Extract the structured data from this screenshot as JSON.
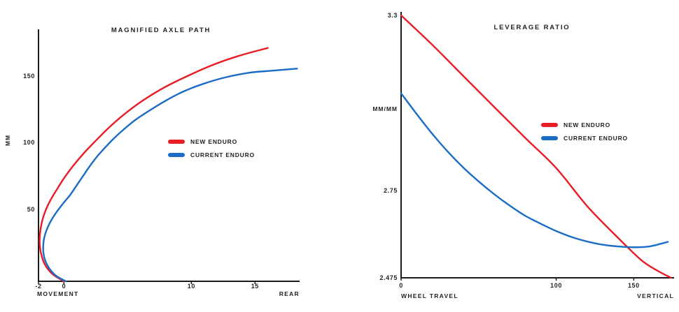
{
  "page": {
    "background": "#ffffff"
  },
  "colors": {
    "red": "#e81c24",
    "blue": "#1b6cc6",
    "text": "#231f20",
    "axis": "#1a1a1a"
  },
  "chart_data": [
    {
      "type": "line",
      "title": "MAGNIFIED AXLE PATH",
      "ylabel": "MM",
      "xlabel_left": "MOVEMENT",
      "xlabel_right": "REAR",
      "xlim": [
        -2,
        18.5
      ],
      "ylim": [
        -4,
        185
      ],
      "grid": false,
      "legend_position": "center",
      "x_ticks": [
        {
          "value": -2,
          "label": "-2"
        },
        {
          "value": 0,
          "label": "0"
        },
        {
          "value": 10,
          "label": "10"
        },
        {
          "value": 15,
          "label": "15"
        }
      ],
      "y_ticks": [
        {
          "value": 50,
          "label": "50"
        },
        {
          "value": 100,
          "label": "100"
        },
        {
          "value": 150,
          "label": "150"
        }
      ],
      "legend": [
        {
          "label": "NEW ENDURO",
          "color": "#e81c24"
        },
        {
          "label": "CURRENT ENDURO",
          "color": "#1b6cc6"
        }
      ],
      "series": [
        {
          "name": "NEW ENDURO",
          "color": "#e81c24",
          "points": [
            [
              0,
              -4
            ],
            [
              -0.85,
              1
            ],
            [
              -1.4,
              7
            ],
            [
              -1.72,
              14
            ],
            [
              -1.9,
              23
            ],
            [
              -1.88,
              32
            ],
            [
              -1.72,
              41
            ],
            [
              -1.45,
              49
            ],
            [
              -1.05,
              57
            ],
            [
              -0.55,
              65
            ],
            [
              0.05,
              74
            ],
            [
              0.75,
              83
            ],
            [
              1.55,
              92
            ],
            [
              2.45,
              101
            ],
            [
              3.5,
              111
            ],
            [
              4.7,
              121
            ],
            [
              6.1,
              131
            ],
            [
              7.8,
              141
            ],
            [
              9.7,
              150
            ],
            [
              11.6,
              158
            ],
            [
              13.7,
              165
            ],
            [
              16.0,
              171
            ]
          ]
        },
        {
          "name": "CURRENT ENDURO",
          "color": "#1b6cc6",
          "points": [
            [
              0.15,
              -4
            ],
            [
              -0.6,
              0
            ],
            [
              -1.1,
              5
            ],
            [
              -1.45,
              11
            ],
            [
              -1.62,
              18
            ],
            [
              -1.6,
              26
            ],
            [
              -1.42,
              33
            ],
            [
              -1.1,
              40
            ],
            [
              -0.65,
              47
            ],
            [
              -0.1,
              54
            ],
            [
              0.5,
              61
            ],
            [
              1.0,
              68
            ],
            [
              1.5,
              75
            ],
            [
              2.0,
              82
            ],
            [
              2.55,
              89
            ],
            [
              3.2,
              96
            ],
            [
              3.9,
              103
            ],
            [
              4.7,
              110
            ],
            [
              5.6,
              117
            ],
            [
              6.7,
              124
            ],
            [
              7.9,
              131
            ],
            [
              9.3,
              138
            ],
            [
              10.9,
              144
            ],
            [
              12.7,
              149
            ],
            [
              14.6,
              152.5
            ],
            [
              16.4,
              154
            ],
            [
              18.3,
              155.5
            ]
          ]
        }
      ]
    },
    {
      "type": "line",
      "title": "LEVERAGE RATIO",
      "ylabel": "MM/MM",
      "xlabel_left": "WHEEL TRAVEL",
      "xlabel_right": "VERTICAL",
      "xlim": [
        0,
        176
      ],
      "ylim": [
        2.475,
        3.3
      ],
      "grid": false,
      "legend_position": "center-right",
      "x_ticks": [
        {
          "value": 0,
          "label": "0"
        },
        {
          "value": 100,
          "label": "100"
        },
        {
          "value": 150,
          "label": "150"
        }
      ],
      "y_ticks": [
        {
          "value": 3.3,
          "label": "3.3"
        },
        {
          "value": 2.75,
          "label": "2.75"
        },
        {
          "value": 2.475,
          "label": "2.475"
        }
      ],
      "legend": [
        {
          "label": "NEW ENDURO",
          "color": "#e81c24"
        },
        {
          "label": "CURRENT ENDURO",
          "color": "#1b6cc6"
        }
      ],
      "series": [
        {
          "name": "NEW ENDURO",
          "color": "#e81c24",
          "points": [
            [
              0,
              3.3
            ],
            [
              20,
              3.208
            ],
            [
              40,
              3.11
            ],
            [
              60,
              3.012
            ],
            [
              80,
              2.915
            ],
            [
              100,
              2.82
            ],
            [
              120,
              2.7
            ],
            [
              140,
              2.6
            ],
            [
              155,
              2.53
            ],
            [
              165,
              2.498
            ],
            [
              174,
              2.475
            ]
          ]
        },
        {
          "name": "CURRENT ENDURO",
          "color": "#1b6cc6",
          "points": [
            [
              0,
              3.055
            ],
            [
              10,
              2.99
            ],
            [
              20,
              2.928
            ],
            [
              30,
              2.872
            ],
            [
              40,
              2.822
            ],
            [
              50,
              2.778
            ],
            [
              60,
              2.738
            ],
            [
              70,
              2.702
            ],
            [
              80,
              2.67
            ],
            [
              90,
              2.645
            ],
            [
              100,
              2.622
            ],
            [
              110,
              2.603
            ],
            [
              120,
              2.589
            ],
            [
              130,
              2.579
            ],
            [
              140,
              2.5735
            ],
            [
              150,
              2.571
            ],
            [
              160,
              2.5735
            ],
            [
              172,
              2.588
            ]
          ]
        }
      ]
    }
  ]
}
